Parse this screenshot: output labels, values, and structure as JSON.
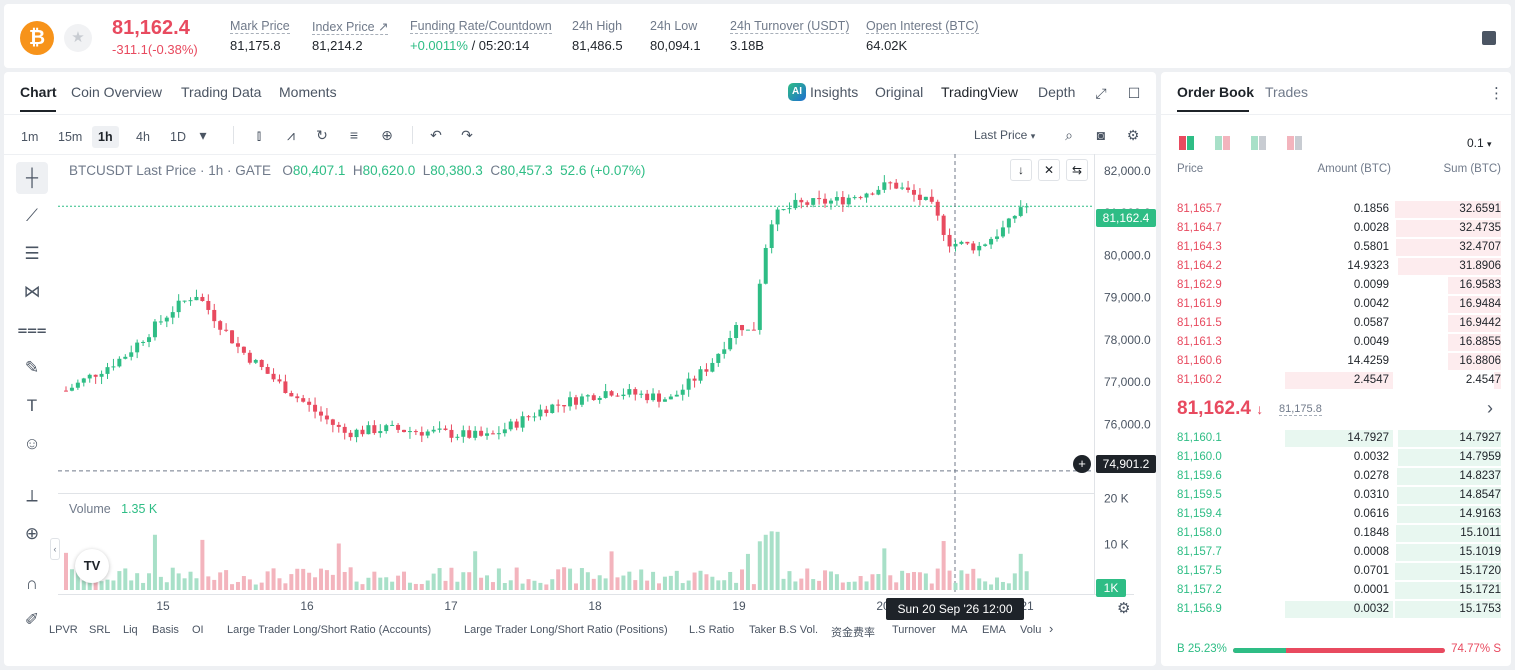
{
  "ticker": {
    "coin_icon": "bitcoin-icon",
    "coin_glyph": "₿",
    "last_price": "81,162.4",
    "change": "-311.1(-0.38%)",
    "stats": [
      {
        "label": "Mark Price",
        "value": "81,175.8"
      },
      {
        "label": "Index Price ↗",
        "value": "81,214.2"
      },
      {
        "label": "Funding Rate/Countdown",
        "value_green": "+0.0011%",
        "value": " / 05:20:14"
      },
      {
        "label": "24h High",
        "value": "81,486.5"
      },
      {
        "label": "24h Low",
        "value": "80,094.1"
      },
      {
        "label": "24h Turnover (USDT)",
        "value": "3.18B"
      },
      {
        "label": "Open Interest (BTC)",
        "value": "64.02K"
      }
    ]
  },
  "chart_tabs": [
    "Chart",
    "Coin Overview",
    "Trading Data",
    "Moments"
  ],
  "views": {
    "ai_badge": "AI",
    "insights": "Insights",
    "original": "Original",
    "tradingview": "TradingView",
    "depth": "Depth"
  },
  "intervals": [
    "1m",
    "15m",
    "1h",
    "4h",
    "1D"
  ],
  "interval_active": "1h",
  "price_type": "Last Price",
  "legend": {
    "symbol": "BTCUSDT Last Price · 1h · GATE",
    "o_label": "O",
    "o": "80,407.1",
    "h_label": "H",
    "h": "80,620.0",
    "l_label": "L",
    "l": "80,380.3",
    "c_label": "C",
    "c": "80,457.3",
    "chg": "52.6 (+0.07%)"
  },
  "volume_legend": {
    "label": "Volume",
    "value": "1.35 K"
  },
  "tags": {
    "last_price": "81,162.4",
    "cross_price": "74,901.2",
    "vol_tag": "1K",
    "cross_time": "Sun 20 Sep '26   12:00",
    "tv_logo": "TV"
  },
  "indicators": [
    "LPVR",
    "SRL",
    "Liq",
    "Basis",
    "OI",
    "Large Trader Long/Short Ratio (Accounts)",
    "Large Trader Long/Short Ratio (Positions)",
    "L.S Ratio",
    "Taker B.S Vol.",
    "资金费率",
    "Turnover",
    "MA",
    "EMA",
    "Volu"
  ],
  "chart_data": {
    "type": "candlestick",
    "price_axis": {
      "ticks": [
        "82,000.0",
        "81,000.0",
        "80,000.0",
        "79,000.0",
        "78,000.0",
        "77,000.0",
        "76,000.0"
      ],
      "values": [
        82000,
        81000,
        80000,
        79000,
        78000,
        77000,
        76000
      ],
      "range": [
        74400,
        82400
      ]
    },
    "volume_axis": {
      "ticks": [
        "20 K",
        "10 K"
      ],
      "values": [
        20000,
        10000
      ],
      "range": [
        0,
        21000
      ]
    },
    "x_axis": {
      "labels": [
        "15",
        "16",
        "17",
        "18",
        "19",
        "20",
        "21"
      ]
    },
    "candles_count": 163,
    "ohlc_anchors": [
      {
        "t": 0,
        "p": 76800
      },
      {
        "t": 12,
        "p": 77600
      },
      {
        "t": 22,
        "p": 78700
      },
      {
        "t": 27,
        "p": 79100
      },
      {
        "t": 36,
        "p": 77800
      },
      {
        "t": 44,
        "p": 77000
      },
      {
        "t": 52,
        "p": 76300
      },
      {
        "t": 58,
        "p": 75800
      },
      {
        "t": 66,
        "p": 75900
      },
      {
        "t": 78,
        "p": 75800
      },
      {
        "t": 88,
        "p": 75700
      },
      {
        "t": 100,
        "p": 76400
      },
      {
        "t": 113,
        "p": 76800
      },
      {
        "t": 126,
        "p": 76600
      },
      {
        "t": 134,
        "p": 77400
      },
      {
        "t": 140,
        "p": 78400
      },
      {
        "t": 143,
        "p": 78100
      },
      {
        "t": 145,
        "p": 79900
      },
      {
        "t": 147,
        "p": 80900
      },
      {
        "t": 152,
        "p": 81200
      },
      {
        "t": 161,
        "p": 81300
      },
      {
        "t": 172,
        "p": 81700
      },
      {
        "t": 180,
        "p": 81200
      },
      {
        "t": 184,
        "p": 80300
      },
      {
        "t": 190,
        "p": 80200
      },
      {
        "t": 196,
        "p": 80700
      },
      {
        "t": 199,
        "p": 81200
      },
      {
        "t": 200,
        "p": 81162.4
      }
    ]
  },
  "orderbook": {
    "tabs": [
      "Order Book",
      "Trades"
    ],
    "precision": "0.1",
    "headers": {
      "price": "Price",
      "amount": "Amount (BTC)",
      "sum": "Sum (BTC)"
    },
    "asks": [
      {
        "price": "81,165.7",
        "amount": "0.1856",
        "sum": "32.6591",
        "a": 0,
        "s": 1.0
      },
      {
        "price": "81,164.7",
        "amount": "0.0028",
        "sum": "32.4735",
        "a": 0,
        "s": 0.99
      },
      {
        "price": "81,164.3",
        "amount": "0.5801",
        "sum": "32.4707",
        "a": 0,
        "s": 0.99
      },
      {
        "price": "81,164.2",
        "amount": "14.9323",
        "sum": "31.8906",
        "a": 0,
        "s": 0.97
      },
      {
        "price": "81,162.9",
        "amount": "0.0099",
        "sum": "16.9583",
        "a": 0,
        "s": 0.5
      },
      {
        "price": "81,161.9",
        "amount": "0.0042",
        "sum": "16.9484",
        "a": 0,
        "s": 0.5
      },
      {
        "price": "81,161.5",
        "amount": "0.0587",
        "sum": "16.9442",
        "a": 0,
        "s": 0.5
      },
      {
        "price": "81,161.3",
        "amount": "0.0049",
        "sum": "16.8855",
        "a": 0,
        "s": 0.5
      },
      {
        "price": "81,160.6",
        "amount": "14.4259",
        "sum": "16.8806",
        "a": 0,
        "s": 0.5
      },
      {
        "price": "81,160.2",
        "amount": "2.4547",
        "sum": "2.4547",
        "a": 1.0,
        "s": 0.07
      }
    ],
    "mid": {
      "price": "81,162.4",
      "arrow": "↓",
      "mark": "81,175.8",
      "chevron": "›"
    },
    "bids": [
      {
        "price": "81,160.1",
        "amount": "14.7927",
        "sum": "14.7927",
        "a": 1.0,
        "s": 0.97
      },
      {
        "price": "81,160.0",
        "amount": "0.0032",
        "sum": "14.7959",
        "a": 0,
        "s": 0.97
      },
      {
        "price": "81,159.6",
        "amount": "0.0278",
        "sum": "14.8237",
        "a": 0,
        "s": 0.98
      },
      {
        "price": "81,159.5",
        "amount": "0.0310",
        "sum": "14.8547",
        "a": 0,
        "s": 0.98
      },
      {
        "price": "81,159.4",
        "amount": "0.0616",
        "sum": "14.9163",
        "a": 0,
        "s": 0.98
      },
      {
        "price": "81,158.0",
        "amount": "0.1848",
        "sum": "15.1011",
        "a": 0,
        "s": 0.99
      },
      {
        "price": "81,157.7",
        "amount": "0.0008",
        "sum": "15.1019",
        "a": 0,
        "s": 0.99
      },
      {
        "price": "81,157.5",
        "amount": "0.0701",
        "sum": "15.1720",
        "a": 0,
        "s": 1.0
      },
      {
        "price": "81,157.2",
        "amount": "0.0001",
        "sum": "15.1721",
        "a": 0,
        "s": 1.0
      },
      {
        "price": "81,156.9",
        "amount": "0.0032",
        "sum": "15.1753",
        "a": 1.0,
        "s": 1.0
      }
    ],
    "ratio": {
      "buy": "B 25.23%",
      "sell": "74.77% S",
      "buy_fraction": 0.2523
    }
  },
  "colors": {
    "up": "#2ebd85",
    "down": "#e84a5f",
    "up_bg": "#e8f7f0",
    "down_bg": "#fdecee"
  }
}
